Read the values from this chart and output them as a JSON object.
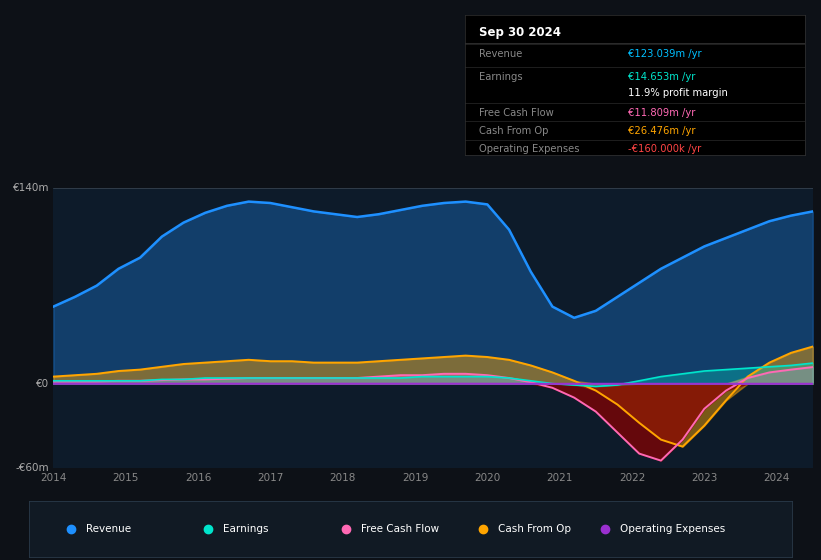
{
  "bg_color": "#0d1117",
  "plot_bg_color": "#0d1b2a",
  "title": "Sep 30 2024",
  "table": {
    "Revenue": {
      "value": "€123.039m /yr",
      "color": "#00bfff"
    },
    "Earnings": {
      "value": "€14.653m /yr",
      "color": "#00e5cc"
    },
    "profit_margin": {
      "value": "11.9% profit margin",
      "color": "#ffffff"
    },
    "Free Cash Flow": {
      "value": "€11.809m /yr",
      "color": "#ff69b4"
    },
    "Cash From Op": {
      "value": "€26.476m /yr",
      "color": "#ffa500"
    },
    "Operating Expenses": {
      "value": "-€160.000k /yr",
      "color": "#ff4444"
    }
  },
  "years": [
    2014.0,
    2014.3,
    2014.6,
    2014.9,
    2015.2,
    2015.5,
    2015.8,
    2016.1,
    2016.4,
    2016.7,
    2017.0,
    2017.3,
    2017.6,
    2017.9,
    2018.2,
    2018.5,
    2018.8,
    2019.1,
    2019.4,
    2019.7,
    2020.0,
    2020.3,
    2020.6,
    2020.9,
    2021.2,
    2021.5,
    2021.8,
    2022.1,
    2022.4,
    2022.7,
    2023.0,
    2023.3,
    2023.6,
    2023.9,
    2024.2,
    2024.5
  ],
  "revenue": [
    55,
    62,
    70,
    82,
    90,
    105,
    115,
    122,
    127,
    130,
    129,
    126,
    123,
    121,
    119,
    121,
    124,
    127,
    129,
    130,
    128,
    110,
    80,
    55,
    47,
    52,
    62,
    72,
    82,
    90,
    98,
    104,
    110,
    116,
    120,
    123
  ],
  "earnings": [
    2,
    2,
    2,
    2,
    2,
    3,
    3,
    4,
    4,
    4,
    4,
    4,
    4,
    4,
    4,
    4,
    4,
    5,
    5,
    5,
    5,
    4,
    2,
    0,
    -1,
    -2,
    -1,
    2,
    5,
    7,
    9,
    10,
    11,
    12,
    13,
    14.653
  ],
  "free_cash_flow": [
    1.5,
    1.5,
    1.5,
    2,
    2,
    2.5,
    3,
    3,
    3.5,
    4,
    4,
    4,
    4,
    4,
    4,
    5,
    6,
    6,
    7,
    7,
    6,
    4,
    1,
    -3,
    -10,
    -20,
    -35,
    -50,
    -55,
    -40,
    -18,
    -5,
    4,
    8,
    10,
    11.809
  ],
  "cash_from_op": [
    5,
    6,
    7,
    9,
    10,
    12,
    14,
    15,
    16,
    17,
    16,
    16,
    15,
    15,
    15,
    16,
    17,
    18,
    19,
    20,
    19,
    17,
    13,
    8,
    2,
    -5,
    -15,
    -28,
    -40,
    -45,
    -30,
    -12,
    5,
    15,
    22,
    26.476
  ],
  "op_expenses": [
    -0.1,
    -0.1,
    -0.1,
    -0.1,
    -0.1,
    -0.1,
    -0.1,
    -0.1,
    -0.1,
    -0.1,
    -0.1,
    -0.1,
    -0.1,
    -0.1,
    -0.1,
    -0.1,
    -0.1,
    -0.1,
    -0.1,
    -0.1,
    -0.12,
    -0.14,
    -0.15,
    -0.16,
    -0.16,
    -0.16,
    -0.16,
    -0.16,
    -0.16,
    -0.16,
    -0.16,
    -0.16,
    -0.16,
    -0.16,
    -0.16,
    -0.16
  ],
  "revenue_color": "#1e90ff",
  "earnings_color": "#00e5cc",
  "fcf_color": "#ff69b4",
  "cashop_color": "#ffa500",
  "opex_color": "#9b30d0",
  "ylim": [
    -60,
    140
  ],
  "xtick_years": [
    2014,
    2015,
    2016,
    2017,
    2018,
    2019,
    2020,
    2021,
    2022,
    2023,
    2024
  ],
  "ytick_positions": [
    -60,
    0,
    140
  ],
  "ytick_labels": [
    "-€60m",
    "€0",
    "€140m"
  ],
  "legend": [
    {
      "label": "Revenue",
      "color": "#1e90ff"
    },
    {
      "label": "Earnings",
      "color": "#00e5cc"
    },
    {
      "label": "Free Cash Flow",
      "color": "#ff69b4"
    },
    {
      "label": "Cash From Op",
      "color": "#ffa500"
    },
    {
      "label": "Operating Expenses",
      "color": "#9b30d0"
    }
  ]
}
